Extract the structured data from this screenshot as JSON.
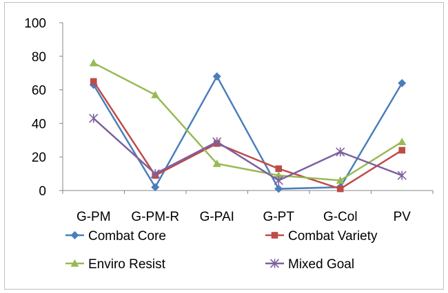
{
  "chart_data": {
    "type": "line",
    "categories": [
      "G-PM",
      "G-PM-R",
      "G-PAI",
      "G-PT",
      "G-Col",
      "PV"
    ],
    "ylim": [
      0,
      100
    ],
    "yticks": [
      0,
      20,
      40,
      60,
      80,
      100
    ],
    "grid": false,
    "legend_position": "bottom",
    "series": [
      {
        "name": "Combat Core",
        "color": "#4a7ebb",
        "marker": "diamond",
        "values": [
          63,
          2,
          68,
          1,
          2,
          64
        ]
      },
      {
        "name": "Combat Variety",
        "color": "#be4b48",
        "marker": "square",
        "values": [
          65,
          9,
          28,
          13,
          1,
          24
        ]
      },
      {
        "name": "Enviro Resist",
        "color": "#98b954",
        "marker": "triangle",
        "values": [
          76,
          57,
          16,
          9,
          6,
          29
        ]
      },
      {
        "name": "Mixed Goal",
        "color": "#7d60a0",
        "marker": "star",
        "values": [
          43,
          10,
          29,
          6,
          23,
          9
        ]
      }
    ]
  }
}
